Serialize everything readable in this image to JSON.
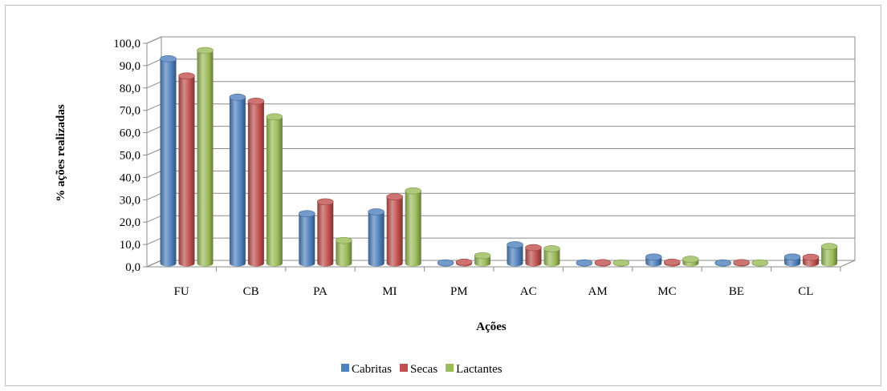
{
  "chart_data": {
    "type": "bar",
    "title": "",
    "xlabel": "Ações",
    "ylabel": "% ações realizadas",
    "ylim": [
      0,
      100
    ],
    "y_ticks": [
      "0,0",
      "10,0",
      "20,0",
      "30,0",
      "40,0",
      "50,0",
      "60,0",
      "70,0",
      "80,0",
      "90,0",
      "100,0"
    ],
    "categories": [
      "FU",
      "CB",
      "PA",
      "MI",
      "PM",
      "AC",
      "AM",
      "MC",
      "BE",
      "CL"
    ],
    "series": [
      {
        "name": "Cabritas",
        "color": "#4f81bd",
        "values": [
          91.5,
          74.3,
          22.2,
          23.0,
          0.2,
          8.3,
          0.2,
          2.8,
          0.2,
          2.8
        ]
      },
      {
        "name": "Secas",
        "color": "#c0504d",
        "values": [
          83.8,
          72.5,
          27.5,
          29.7,
          0.5,
          7.0,
          0.3,
          0.5,
          0.3,
          2.7
        ]
      },
      {
        "name": "Lactantes",
        "color": "#9bbb59",
        "values": [
          95.2,
          65.5,
          10.2,
          32.4,
          3.4,
          6.5,
          0.2,
          1.8,
          0.2,
          7.5
        ]
      }
    ],
    "grid": true,
    "legend_position": "bottom"
  }
}
